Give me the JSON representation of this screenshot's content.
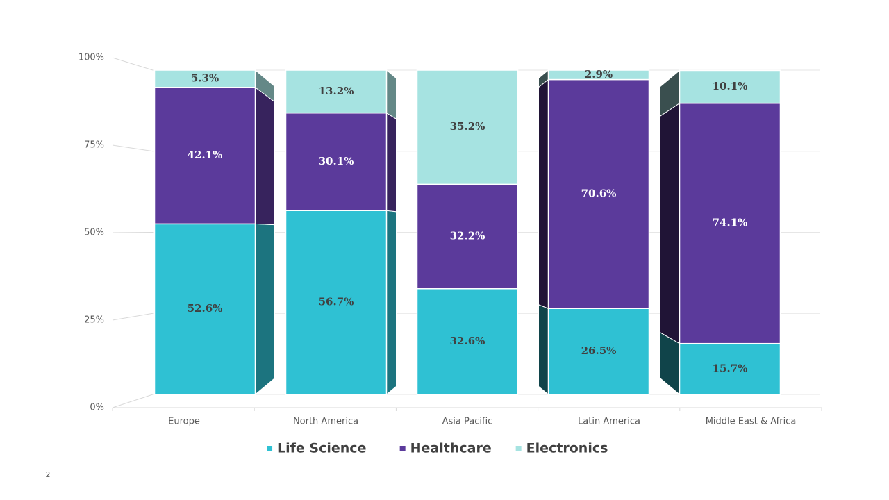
{
  "chart_data": {
    "type": "stacked_bar_3d",
    "categories": [
      "Europe",
      "North America",
      "Asia Pacific",
      "Latin America",
      "Middle East & Africa"
    ],
    "series": [
      {
        "name": "Life Science",
        "color": "#2fc1d3",
        "values": [
          52.6,
          56.7,
          32.6,
          26.5,
          15.7
        ],
        "value_labels": [
          "52.6%",
          "56.7%",
          "32.6%",
          "26.5%",
          "15.7%"
        ]
      },
      {
        "name": "Healthcare",
        "color": "#5b3a9b",
        "values": [
          42.1,
          30.1,
          32.2,
          70.6,
          74.1
        ],
        "value_labels": [
          "42.1%",
          "30.1%",
          "32.2%",
          "70.6%",
          "74.1%"
        ]
      },
      {
        "name": "Electronics",
        "color": "#a6e3e1",
        "values": [
          5.3,
          13.2,
          35.2,
          2.9,
          10.1
        ],
        "value_labels": [
          "5.3%",
          "13.2%",
          "35.2%",
          "2.9%",
          "10.1%"
        ]
      }
    ],
    "ylim": [
      0,
      100
    ],
    "yticks": [
      {
        "value": 0,
        "label": "0%"
      },
      {
        "value": 25,
        "label": "25%"
      },
      {
        "value": 50,
        "label": "50%"
      },
      {
        "value": 75,
        "label": "75%"
      },
      {
        "value": 100,
        "label": "100%"
      }
    ],
    "grid": true,
    "legend": "bottom"
  },
  "slide_number": "2"
}
